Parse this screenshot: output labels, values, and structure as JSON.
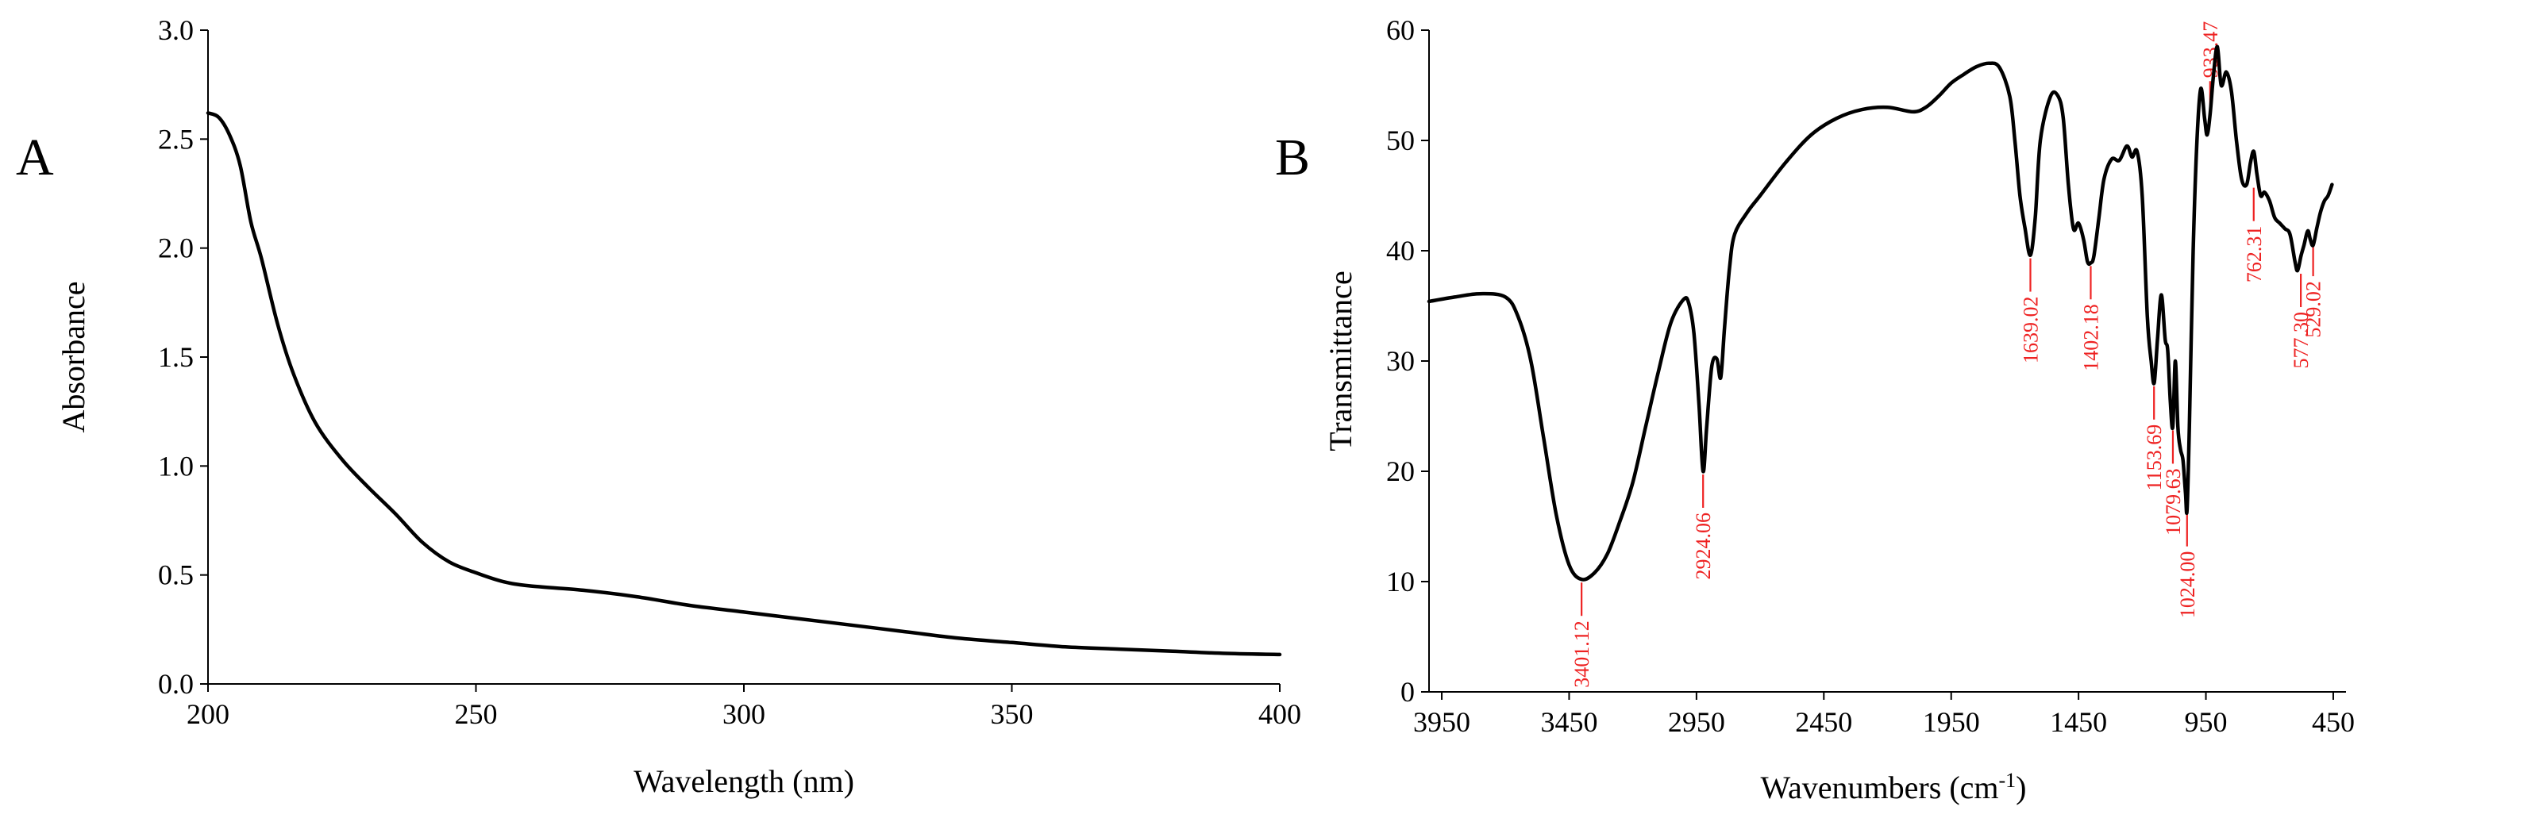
{
  "chart_data": [
    {
      "type": "line",
      "panel_label": "A",
      "xlabel": "Wavelength (nm)",
      "ylabel": "Absorbance",
      "xlim": [
        200,
        400
      ],
      "ylim": [
        0,
        3.0
      ],
      "x_ticks": [
        200,
        250,
        300,
        350,
        400
      ],
      "y_ticks": [
        0.0,
        0.5,
        1.0,
        1.5,
        2.0,
        2.5,
        3.0
      ],
      "x_tick_labels": [
        "200",
        "250",
        "300",
        "350",
        "400"
      ],
      "y_tick_labels": [
        "0.0",
        "0.5",
        "1.0",
        "1.5",
        "2.0",
        "2.5",
        "3.0"
      ],
      "grid": false,
      "series": [
        {
          "x": [
            200,
            202,
            204,
            206,
            208,
            210,
            213,
            216,
            220,
            225,
            230,
            235,
            240,
            245,
            250,
            255,
            260,
            270,
            280,
            290,
            300,
            310,
            320,
            330,
            340,
            350,
            360,
            370,
            380,
            390,
            400
          ],
          "y": [
            2.62,
            2.6,
            2.52,
            2.38,
            2.12,
            1.95,
            1.65,
            1.42,
            1.2,
            1.03,
            0.9,
            0.78,
            0.65,
            0.56,
            0.51,
            0.47,
            0.45,
            0.43,
            0.4,
            0.36,
            0.33,
            0.3,
            0.27,
            0.24,
            0.21,
            0.19,
            0.17,
            0.16,
            0.15,
            0.14,
            0.135
          ]
        }
      ]
    },
    {
      "type": "line",
      "panel_label": "B",
      "xlabel_main": "Wavenumbers (cm",
      "xlabel_sup": "-1",
      "xlabel_tail": ")",
      "ylabel": "Transmittance",
      "xlim": [
        4000,
        400
      ],
      "ylim": [
        0,
        60
      ],
      "x_ticks": [
        3950,
        3450,
        2950,
        2450,
        1950,
        1450,
        950,
        450
      ],
      "y_ticks": [
        0,
        10,
        20,
        30,
        40,
        50,
        60
      ],
      "x_tick_labels": [
        "3950",
        "3450",
        "2950",
        "2450",
        "1950",
        "1450",
        "950",
        "450"
      ],
      "y_tick_labels": [
        "0",
        "10",
        "20",
        "30",
        "40",
        "50",
        "60"
      ],
      "grid": false,
      "series": [
        {
          "x": [
            4000,
            3900,
            3800,
            3700,
            3650,
            3600,
            3550,
            3500,
            3450,
            3401,
            3350,
            3300,
            3250,
            3200,
            3150,
            3100,
            3050,
            3000,
            2980,
            2960,
            2940,
            2924,
            2910,
            2890,
            2870,
            2855,
            2840,
            2820,
            2800,
            2750,
            2700,
            2600,
            2500,
            2400,
            2300,
            2200,
            2100,
            2050,
            2000,
            1950,
            1900,
            1850,
            1800,
            1760,
            1720,
            1700,
            1680,
            1660,
            1639,
            1620,
            1600,
            1560,
            1530,
            1510,
            1490,
            1470,
            1450,
            1430,
            1415,
            1402,
            1390,
            1370,
            1350,
            1320,
            1290,
            1260,
            1240,
            1220,
            1200,
            1180,
            1165,
            1153,
            1140,
            1125,
            1110,
            1100,
            1090,
            1080,
            1070,
            1060,
            1050,
            1040,
            1030,
            1024,
            1015,
            1000,
            985,
            970,
            955,
            945,
            933,
            920,
            905,
            890,
            870,
            850,
            830,
            810,
            790,
            775,
            762,
            750,
            735,
            720,
            700,
            680,
            660,
            640,
            620,
            600,
            590,
            577,
            565,
            550,
            540,
            529,
            515,
            500,
            485,
            470,
            455
          ],
          "y": [
            35.4,
            35.8,
            36.1,
            35.8,
            34.0,
            30.0,
            23.0,
            16.0,
            11.5,
            10.2,
            10.8,
            12.5,
            15.5,
            19.0,
            24.0,
            29.0,
            33.5,
            35.6,
            35.2,
            32.5,
            26.0,
            20.0,
            24.0,
            29.5,
            30.2,
            28.5,
            33.0,
            38.5,
            41.5,
            43.5,
            45.0,
            48.0,
            50.5,
            52.0,
            52.8,
            53.0,
            52.6,
            53.0,
            54.0,
            55.2,
            56.0,
            56.7,
            57.0,
            56.6,
            54.0,
            50.0,
            45.0,
            42.0,
            39.6,
            43.0,
            50.0,
            54.0,
            54.0,
            52.0,
            46.0,
            42.0,
            42.5,
            41.0,
            39.0,
            38.9,
            39.5,
            43.0,
            46.5,
            48.3,
            48.2,
            49.5,
            48.5,
            49.0,
            45.0,
            34.0,
            30.0,
            28.0,
            32.0,
            36.0,
            32.0,
            31.0,
            26.5,
            24.0,
            30.0,
            24.0,
            22.0,
            21.0,
            18.0,
            16.5,
            24.0,
            40.0,
            50.0,
            54.7,
            52.0,
            50.5,
            52.5,
            56.0,
            58.5,
            55.0,
            56.2,
            54.5,
            50.0,
            46.5,
            46.0,
            48.0,
            49.0,
            47.0,
            45.0,
            45.3,
            44.5,
            43.0,
            42.5,
            42.0,
            41.5,
            39.0,
            38.2,
            39.5,
            40.5,
            41.8,
            41.0,
            40.5,
            42.0,
            43.5,
            44.5,
            45.0,
            46.0
          ]
        }
      ],
      "annotations": [
        {
          "label": "3401.12",
          "x": 3401.12,
          "y": 10.2,
          "dir": "down"
        },
        {
          "label": "2924.06",
          "x": 2924.06,
          "y": 20.0,
          "dir": "down"
        },
        {
          "label": "1639.02",
          "x": 1639.02,
          "y": 39.6,
          "dir": "down"
        },
        {
          "label": "1402.18",
          "x": 1402.18,
          "y": 38.9,
          "dir": "down"
        },
        {
          "label": "1153.69",
          "x": 1153.69,
          "y": 28.0,
          "dir": "down"
        },
        {
          "label": "1079.63",
          "x": 1079.63,
          "y": 24.0,
          "dir": "down"
        },
        {
          "label": "1024.00",
          "x": 1024.0,
          "y": 16.5,
          "dir": "down"
        },
        {
          "label": "933.47",
          "x": 933.47,
          "y": 52.5,
          "dir": "up"
        },
        {
          "label": "762.31",
          "x": 762.31,
          "y": 46.0,
          "dir": "down"
        },
        {
          "label": "577.30",
          "x": 577.3,
          "y": 38.2,
          "dir": "down"
        },
        {
          "label": "529.02",
          "x": 529.02,
          "y": 41.0,
          "dir": "down"
        }
      ]
    }
  ]
}
